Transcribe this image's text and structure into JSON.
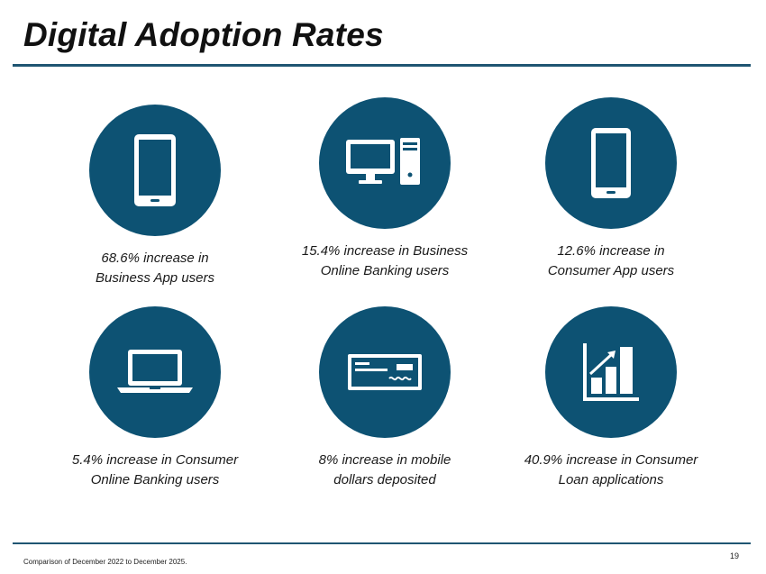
{
  "title": "Digital Adoption Rates",
  "colors": {
    "accent": "#0d5273",
    "rule": "#1f5572"
  },
  "tiles": [
    {
      "icon": "smartphone-icon",
      "line1": "68.6% increase in",
      "line2": "Business App users"
    },
    {
      "icon": "desktop-computer-icon",
      "line1": "15.4% increase in Business",
      "line2": "Online Banking users"
    },
    {
      "icon": "smartphone-icon",
      "line1": "12.6% increase in",
      "line2": "Consumer App users"
    },
    {
      "icon": "laptop-icon",
      "line1": "5.4% increase in Consumer",
      "line2": "Online Banking users"
    },
    {
      "icon": "check-icon",
      "line1": "8% increase in mobile",
      "line2": "dollars deposited"
    },
    {
      "icon": "growth-chart-icon",
      "line1": "40.9% increase in Consumer",
      "line2": "Loan applications"
    }
  ],
  "footnote": "Comparison of December 2022 to December 2025.",
  "page_number": "19"
}
